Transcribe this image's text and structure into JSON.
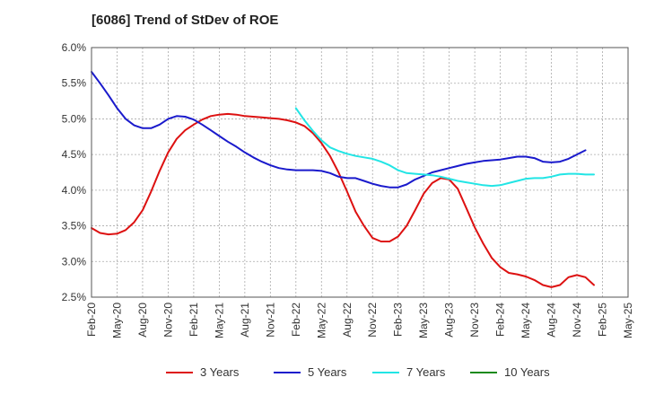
{
  "chart_data": {
    "type": "line",
    "title": "[6086]  Trend of StDev of ROE",
    "xlabel": "",
    "ylabel": "",
    "ylim": [
      2.5,
      6.0
    ],
    "y_ticks": [
      "2.5%",
      "3.0%",
      "3.5%",
      "4.0%",
      "4.5%",
      "5.0%",
      "5.5%",
      "6.0%"
    ],
    "x_ticks": [
      "Feb-20",
      "May-20",
      "Aug-20",
      "Nov-20",
      "Feb-21",
      "May-21",
      "Aug-21",
      "Nov-21",
      "Feb-22",
      "May-22",
      "Aug-22",
      "Nov-22",
      "Feb-23",
      "May-23",
      "Aug-23",
      "Nov-23",
      "Feb-24",
      "May-24",
      "Aug-24",
      "Nov-24",
      "Feb-25",
      "May-25"
    ],
    "grid": true,
    "legend_position": "bottom",
    "series": [
      {
        "name": "3 Years",
        "color": "#dd1111",
        "points": [
          [
            "Feb-20",
            3.47
          ],
          [
            "Mar-20",
            3.4
          ],
          [
            "Apr-20",
            3.38
          ],
          [
            "May-20",
            3.39
          ],
          [
            "Jun-20",
            3.44
          ],
          [
            "Jul-20",
            3.55
          ],
          [
            "Aug-20",
            3.72
          ],
          [
            "Sep-20",
            3.98
          ],
          [
            "Oct-20",
            4.27
          ],
          [
            "Nov-20",
            4.53
          ],
          [
            "Dec-20",
            4.72
          ],
          [
            "Jan-21",
            4.84
          ],
          [
            "Feb-21",
            4.92
          ],
          [
            "Mar-21",
            4.99
          ],
          [
            "Apr-21",
            5.04
          ],
          [
            "May-21",
            5.06
          ],
          [
            "Jun-21",
            5.07
          ],
          [
            "Jul-21",
            5.06
          ],
          [
            "Aug-21",
            5.04
          ],
          [
            "Sep-21",
            5.03
          ],
          [
            "Oct-21",
            5.02
          ],
          [
            "Nov-21",
            5.01
          ],
          [
            "Dec-21",
            5.0
          ],
          [
            "Jan-22",
            4.98
          ],
          [
            "Feb-22",
            4.95
          ],
          [
            "Mar-22",
            4.9
          ],
          [
            "Apr-22",
            4.8
          ],
          [
            "May-22",
            4.66
          ],
          [
            "Jun-22",
            4.48
          ],
          [
            "Jul-22",
            4.25
          ],
          [
            "Aug-22",
            3.98
          ],
          [
            "Sep-22",
            3.7
          ],
          [
            "Oct-22",
            3.5
          ],
          [
            "Nov-22",
            3.33
          ],
          [
            "Dec-22",
            3.28
          ],
          [
            "Jan-23",
            3.28
          ],
          [
            "Feb-23",
            3.35
          ],
          [
            "Mar-23",
            3.5
          ],
          [
            "Apr-23",
            3.72
          ],
          [
            "May-23",
            3.95
          ],
          [
            "Jun-23",
            4.1
          ],
          [
            "Jul-23",
            4.17
          ],
          [
            "Aug-23",
            4.15
          ],
          [
            "Sep-23",
            4.02
          ],
          [
            "Oct-23",
            3.75
          ],
          [
            "Nov-23",
            3.48
          ],
          [
            "Dec-23",
            3.25
          ],
          [
            "Jan-24",
            3.05
          ],
          [
            "Feb-24",
            2.92
          ],
          [
            "Mar-24",
            2.84
          ],
          [
            "Apr-24",
            2.82
          ],
          [
            "May-24",
            2.79
          ],
          [
            "Jun-24",
            2.74
          ],
          [
            "Jul-24",
            2.67
          ],
          [
            "Aug-24",
            2.64
          ],
          [
            "Sep-24",
            2.67
          ],
          [
            "Oct-24",
            2.78
          ],
          [
            "Nov-24",
            2.81
          ],
          [
            "Dec-24",
            2.78
          ],
          [
            "Jan-25",
            2.67
          ]
        ]
      },
      {
        "name": "5 Years",
        "color": "#1a1acc",
        "points": [
          [
            "Feb-20",
            5.66
          ],
          [
            "Mar-20",
            5.5
          ],
          [
            "Apr-20",
            5.33
          ],
          [
            "May-20",
            5.15
          ],
          [
            "Jun-20",
            5.0
          ],
          [
            "Jul-20",
            4.91
          ],
          [
            "Aug-20",
            4.87
          ],
          [
            "Sep-20",
            4.87
          ],
          [
            "Oct-20",
            4.92
          ],
          [
            "Nov-20",
            5.0
          ],
          [
            "Dec-20",
            5.04
          ],
          [
            "Jan-21",
            5.03
          ],
          [
            "Feb-21",
            4.99
          ],
          [
            "Mar-21",
            4.92
          ],
          [
            "Apr-21",
            4.84
          ],
          [
            "May-21",
            4.76
          ],
          [
            "Jun-21",
            4.68
          ],
          [
            "Jul-21",
            4.61
          ],
          [
            "Aug-21",
            4.53
          ],
          [
            "Sep-21",
            4.46
          ],
          [
            "Oct-21",
            4.4
          ],
          [
            "Nov-21",
            4.35
          ],
          [
            "Dec-21",
            4.31
          ],
          [
            "Jan-22",
            4.29
          ],
          [
            "Feb-22",
            4.28
          ],
          [
            "Mar-22",
            4.28
          ],
          [
            "Apr-22",
            4.28
          ],
          [
            "May-22",
            4.27
          ],
          [
            "Jun-22",
            4.24
          ],
          [
            "Jul-22",
            4.19
          ],
          [
            "Aug-22",
            4.17
          ],
          [
            "Sep-22",
            4.17
          ],
          [
            "Oct-22",
            4.13
          ],
          [
            "Nov-22",
            4.09
          ],
          [
            "Dec-22",
            4.06
          ],
          [
            "Jan-23",
            4.04
          ],
          [
            "Feb-23",
            4.04
          ],
          [
            "Mar-23",
            4.08
          ],
          [
            "Apr-23",
            4.15
          ],
          [
            "May-23",
            4.2
          ],
          [
            "Jun-23",
            4.25
          ],
          [
            "Jul-23",
            4.28
          ],
          [
            "Aug-23",
            4.31
          ],
          [
            "Sep-23",
            4.34
          ],
          [
            "Oct-23",
            4.37
          ],
          [
            "Nov-23",
            4.39
          ],
          [
            "Dec-23",
            4.41
          ],
          [
            "Jan-24",
            4.42
          ],
          [
            "Feb-24",
            4.43
          ],
          [
            "Mar-24",
            4.45
          ],
          [
            "Apr-24",
            4.47
          ],
          [
            "May-24",
            4.47
          ],
          [
            "Jun-24",
            4.45
          ],
          [
            "Jul-24",
            4.4
          ],
          [
            "Aug-24",
            4.39
          ],
          [
            "Sep-24",
            4.4
          ],
          [
            "Oct-24",
            4.44
          ],
          [
            "Nov-24",
            4.5
          ],
          [
            "Dec-24",
            4.56
          ]
        ]
      },
      {
        "name": "7 Years",
        "color": "#22e5e5",
        "points": [
          [
            "Feb-22",
            5.15
          ],
          [
            "Mar-22",
            4.98
          ],
          [
            "Apr-22",
            4.83
          ],
          [
            "May-22",
            4.7
          ],
          [
            "Jun-22",
            4.6
          ],
          [
            "Jul-22",
            4.55
          ],
          [
            "Aug-22",
            4.51
          ],
          [
            "Sep-22",
            4.48
          ],
          [
            "Oct-22",
            4.46
          ],
          [
            "Nov-22",
            4.44
          ],
          [
            "Dec-22",
            4.4
          ],
          [
            "Jan-23",
            4.35
          ],
          [
            "Feb-23",
            4.28
          ],
          [
            "Mar-23",
            4.24
          ],
          [
            "Apr-23",
            4.23
          ],
          [
            "May-23",
            4.22
          ],
          [
            "Jun-23",
            4.21
          ],
          [
            "Jul-23",
            4.19
          ],
          [
            "Aug-23",
            4.16
          ],
          [
            "Sep-23",
            4.13
          ],
          [
            "Oct-23",
            4.11
          ],
          [
            "Nov-23",
            4.09
          ],
          [
            "Dec-23",
            4.07
          ],
          [
            "Jan-24",
            4.06
          ],
          [
            "Feb-24",
            4.07
          ],
          [
            "Mar-24",
            4.1
          ],
          [
            "Apr-24",
            4.13
          ],
          [
            "May-24",
            4.16
          ],
          [
            "Jun-24",
            4.17
          ],
          [
            "Jul-24",
            4.17
          ],
          [
            "Aug-24",
            4.19
          ],
          [
            "Sep-24",
            4.22
          ],
          [
            "Oct-24",
            4.23
          ],
          [
            "Nov-24",
            4.23
          ],
          [
            "Dec-24",
            4.22
          ],
          [
            "Jan-25",
            4.22
          ]
        ]
      },
      {
        "name": "10 Years",
        "color": "#1a8a1a",
        "points": []
      }
    ]
  }
}
